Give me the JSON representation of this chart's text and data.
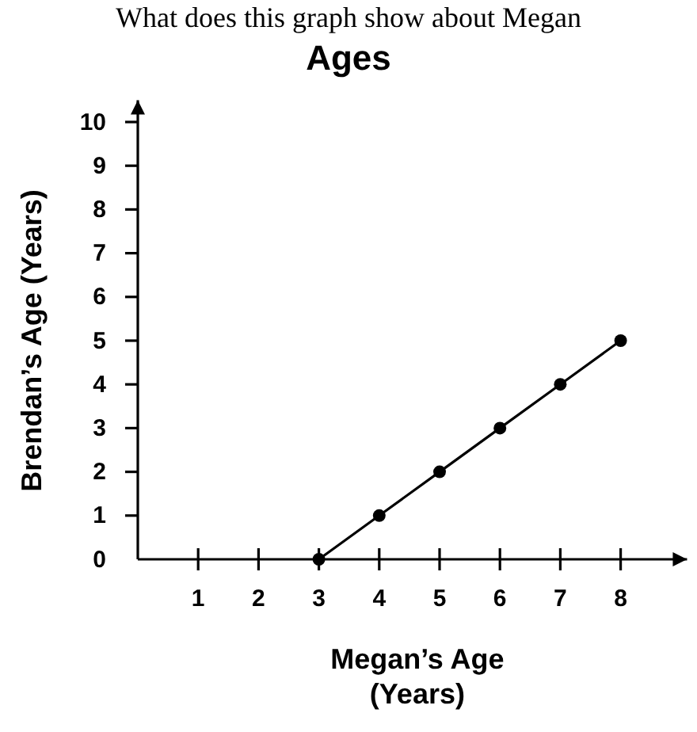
{
  "chart_data": {
    "type": "line",
    "title": "Ages",
    "xlabel": "Megan’s Age\n(Years)",
    "ylabel": "Brendan’s Age (Years)",
    "annotations": [
      "What does this graph show about Megan"
    ],
    "x": [
      3,
      4,
      5,
      6,
      7,
      8
    ],
    "series": [
      {
        "color": "#000000",
        "values": [
          0,
          1,
          2,
          3,
          4,
          5
        ]
      }
    ],
    "xlim": [
      0,
      9.1
    ],
    "xticks": [
      {
        "value": 0,
        "label": null
      },
      1,
      2,
      3,
      4,
      5,
      6,
      7,
      8
    ],
    "ylim": [
      0,
      10.5
    ],
    "yticks": [
      0,
      1,
      2,
      3,
      4,
      5,
      6,
      7,
      8,
      9,
      10
    ],
    "grid": false,
    "marker": "circle",
    "line_style": "solid"
  }
}
